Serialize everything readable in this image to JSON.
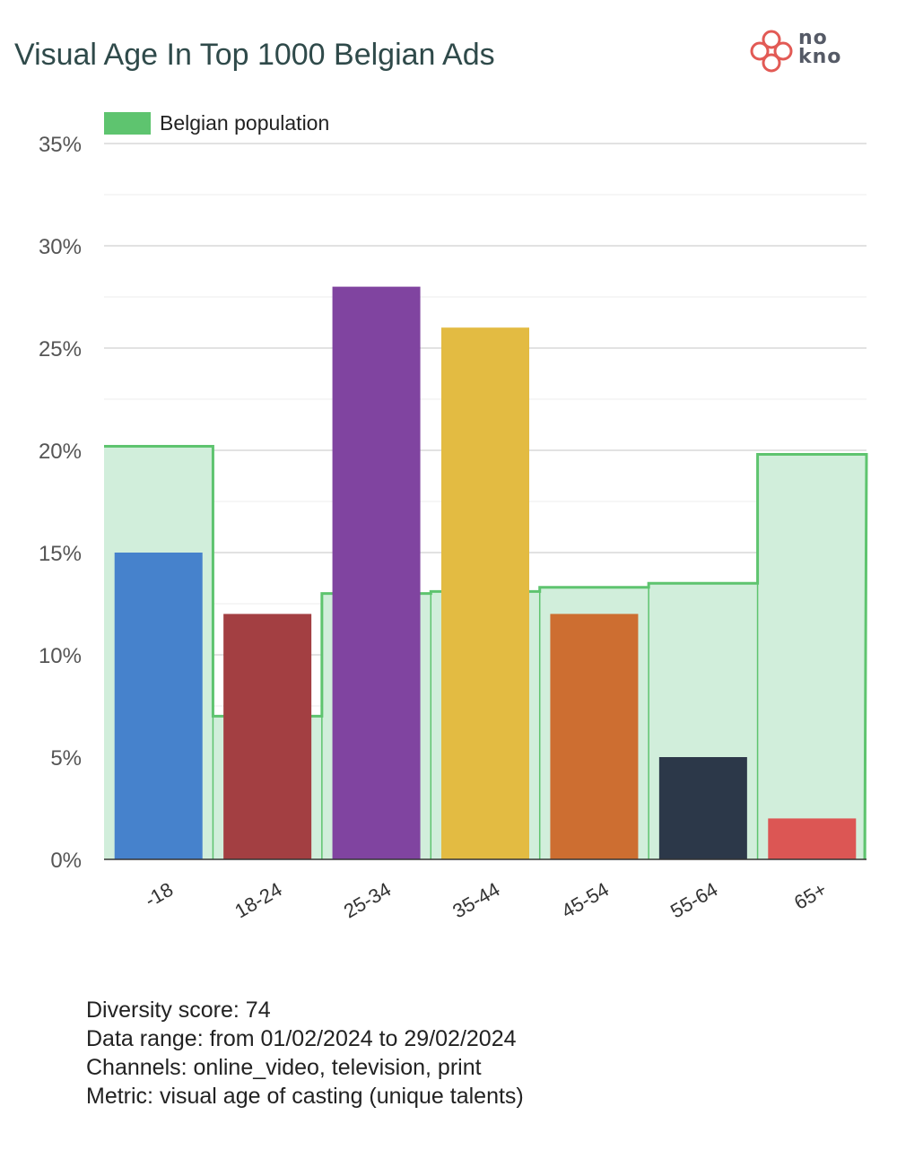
{
  "header": {
    "title": "Visual Age In Top 1000 Belgian Ads",
    "logo_text_line1": "no",
    "logo_text_line2": "kno",
    "logo_color": "#e25a55"
  },
  "chart_data": {
    "type": "bar",
    "title": "Visual Age In Top 1000 Belgian Ads",
    "categories": [
      "-18",
      "18-24",
      "25-34",
      "35-44",
      "45-54",
      "55-64",
      "65+"
    ],
    "values": [
      15,
      12,
      28,
      26,
      12,
      5,
      2
    ],
    "bar_colors": [
      "#4682cc",
      "#a33f42",
      "#8044a0",
      "#e3bb42",
      "#cd6e31",
      "#2c3849",
      "#dc5654"
    ],
    "reference": {
      "name": "Belgian population",
      "type": "step-area",
      "values": [
        20.2,
        7,
        13,
        13.1,
        13.3,
        13.5,
        19.8
      ],
      "color": "#5ec46f",
      "fill": "#d1eedb"
    },
    "y_unit": "%",
    "ylim": [
      0,
      35
    ],
    "yticks": [
      0,
      5,
      10,
      15,
      20,
      25,
      30,
      35
    ],
    "ytick_labels": [
      "0%",
      "5%",
      "10%",
      "15%",
      "20%",
      "25%",
      "30%",
      "35%"
    ],
    "grid": true,
    "legend": "top-left",
    "xlabel": "",
    "ylabel": ""
  },
  "info": {
    "diversity_score": "Diversity score: 74",
    "data_range": "Data range: from 01/02/2024 to 29/02/2024",
    "channels": "Channels: online_video, television, print",
    "metric": "Metric: visual age of casting (unique talents)"
  }
}
